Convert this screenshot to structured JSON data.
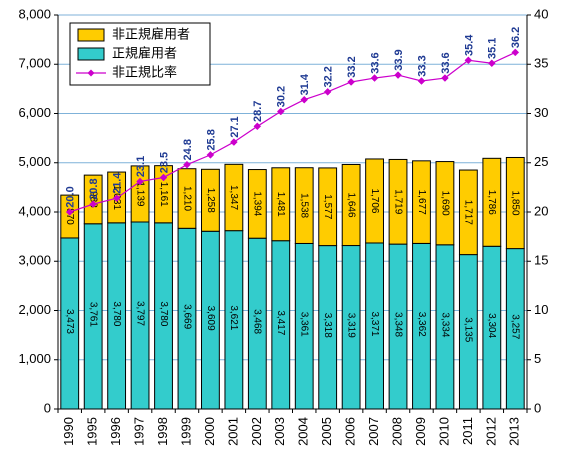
{
  "chart_data": {
    "type": "bar",
    "stacked": true,
    "categories": [
      "1990",
      "1995",
      "1996",
      "1997",
      "1998",
      "1999",
      "2000",
      "2001",
      "2002",
      "2003",
      "2004",
      "2005",
      "2006",
      "2007",
      "2008",
      "2009",
      "2010",
      "2011",
      "2012",
      "2013"
    ],
    "series": [
      {
        "name": "正規雇用者",
        "color": "#33CCCC",
        "values": [
          3473,
          3761,
          3780,
          3797,
          3780,
          3669,
          3609,
          3621,
          3468,
          3417,
          3361,
          3318,
          3319,
          3371,
          3348,
          3362,
          3334,
          3135,
          3304,
          3257
        ],
        "labels": [
          "3,473",
          "3,761",
          "3,780",
          "3,797",
          "3,780",
          "3,669",
          "3,609",
          "3,621",
          "3,468",
          "3,417",
          "3,361",
          "3,318",
          "3,319",
          "3,371",
          "3,348",
          "3,362",
          "3,334",
          "3,135",
          "3,304",
          "3,257"
        ]
      },
      {
        "name": "非正規雇用者",
        "color": "#FFCC00",
        "values": [
          870,
          988,
          1031,
          1139,
          1161,
          1210,
          1258,
          1347,
          1394,
          1481,
          1538,
          1577,
          1646,
          1706,
          1719,
          1677,
          1690,
          1717,
          1786,
          1850
        ],
        "labels": [
          "870",
          "988",
          "1,031",
          "1,139",
          "1,161",
          "1,210",
          "1,258",
          "1,347",
          "1,394",
          "1,481",
          "1,538",
          "1,577",
          "1,646",
          "1,706",
          "1,719",
          "1,677",
          "1,690",
          "1,717",
          "1,786",
          "1,850"
        ]
      },
      {
        "name": "非正規比率",
        "type": "line",
        "axis": "right",
        "color": "#CC00CC",
        "values": [
          20.0,
          20.8,
          21.4,
          23.1,
          23.5,
          24.8,
          25.8,
          27.1,
          28.7,
          30.2,
          31.4,
          32.2,
          33.2,
          33.6,
          33.9,
          33.3,
          33.6,
          35.4,
          35.1,
          36.2
        ],
        "labels": [
          "20.0",
          "20.8",
          "21.4",
          "23.1",
          "23.5",
          "24.8",
          "25.8",
          "27.1",
          "28.7",
          "30.2",
          "31.4",
          "32.2",
          "33.2",
          "33.6",
          "33.9",
          "33.3",
          "33.6",
          "35.4",
          "35.1",
          "36.2"
        ]
      }
    ],
    "y_left": {
      "ylim": [
        0,
        8000
      ],
      "ticks": [
        0,
        1000,
        2000,
        3000,
        4000,
        5000,
        6000,
        7000,
        8000
      ],
      "tick_labels": [
        "0",
        "1,000",
        "2,000",
        "3,000",
        "4,000",
        "5,000",
        "6,000",
        "7,000",
        "8,000"
      ]
    },
    "y_right": {
      "ylim": [
        0,
        40
      ],
      "ticks": [
        0,
        5,
        10,
        15,
        20,
        25,
        30,
        35,
        40
      ],
      "tick_labels": [
        "0",
        "5",
        "10",
        "15",
        "20",
        "25",
        "30",
        "35",
        "40"
      ]
    },
    "grid": true,
    "legend": {
      "placement": "top-left",
      "entries": [
        "非正規雇用者",
        "正規雇用者",
        "非正規比率"
      ]
    },
    "title": "",
    "xlabel": "",
    "ylabel": ""
  }
}
